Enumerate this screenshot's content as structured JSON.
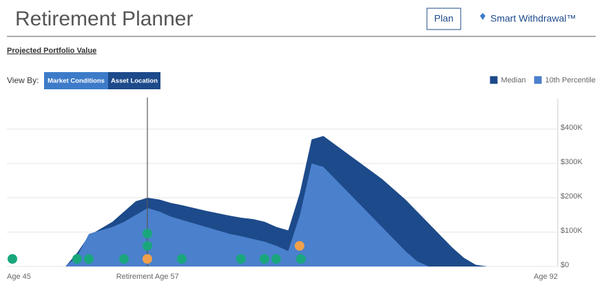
{
  "header": {
    "title": "Retirement Planner",
    "plan_button": "Plan",
    "smart_withdrawal": "Smart Withdrawal™"
  },
  "section_title": "Projected Portfolio Value",
  "view_by": {
    "label": "View By:",
    "options": [
      "Market Conditions",
      "Asset Location"
    ]
  },
  "chart_data": {
    "type": "area",
    "legend": "top-right",
    "grid": true,
    "x": [
      50,
      51,
      52,
      53,
      54,
      55,
      56,
      57,
      58,
      59,
      60,
      61,
      62,
      63,
      64,
      65,
      66,
      67,
      68,
      69,
      70,
      71,
      72,
      73,
      74,
      75,
      76,
      77,
      78,
      79,
      80,
      81,
      82,
      83,
      84,
      85,
      86
    ],
    "xlim": [
      45,
      92
    ],
    "xticks": [
      {
        "value": 45,
        "label": "Age 45"
      },
      {
        "value": 57,
        "label": "Retirement Age 57"
      },
      {
        "value": 92,
        "label": "Age 92"
      }
    ],
    "ylim": [
      0,
      480000
    ],
    "yticks": [
      {
        "value": 0,
        "label": "$0"
      },
      {
        "value": 100000,
        "label": "$100K"
      },
      {
        "value": 200000,
        "label": "$200K"
      },
      {
        "value": 300000,
        "label": "$300K"
      },
      {
        "value": 400000,
        "label": "$400K"
      }
    ],
    "series": [
      {
        "name": "Median",
        "color": "#1d4a8a",
        "values": [
          0,
          40000,
          90000,
          110000,
          130000,
          160000,
          190000,
          200000,
          195000,
          185000,
          178000,
          170000,
          162000,
          155000,
          148000,
          142000,
          138000,
          130000,
          115000,
          105000,
          215000,
          370000,
          380000,
          355000,
          330000,
          305000,
          280000,
          255000,
          225000,
          195000,
          160000,
          125000,
          90000,
          55000,
          25000,
          5000,
          0
        ]
      },
      {
        "name": "10th Percentile",
        "color": "#4a80cc",
        "values": [
          0,
          30000,
          95000,
          105000,
          115000,
          130000,
          150000,
          170000,
          160000,
          145000,
          135000,
          125000,
          115000,
          105000,
          95000,
          88000,
          80000,
          72000,
          60000,
          45000,
          150000,
          300000,
          290000,
          255000,
          220000,
          185000,
          150000,
          115000,
          80000,
          45000,
          15000,
          0,
          0,
          0,
          0,
          0,
          0
        ]
      }
    ]
  }
}
